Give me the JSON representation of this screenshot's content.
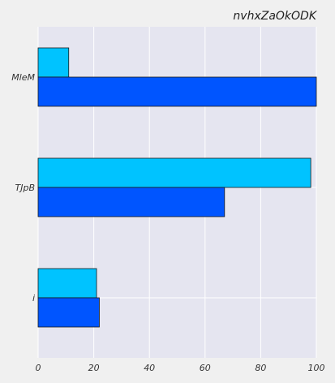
{
  "chart_data": {
    "type": "bar",
    "orientation": "horizontal",
    "title": "nvhxZaOkODK",
    "xlabel": "",
    "ylabel": "",
    "categories": [
      "MleM",
      "TJpB",
      "i"
    ],
    "series": [
      {
        "color": "#00c3ff",
        "values": [
          11,
          98,
          21
        ]
      },
      {
        "color": "#0055ff",
        "values": [
          100,
          67,
          22
        ]
      }
    ],
    "xlim": [
      0,
      100
    ],
    "xticks": [
      0,
      20,
      40,
      60,
      80,
      100
    ],
    "grid": true,
    "legend": "none",
    "plot_background": "#e5e5f0"
  }
}
